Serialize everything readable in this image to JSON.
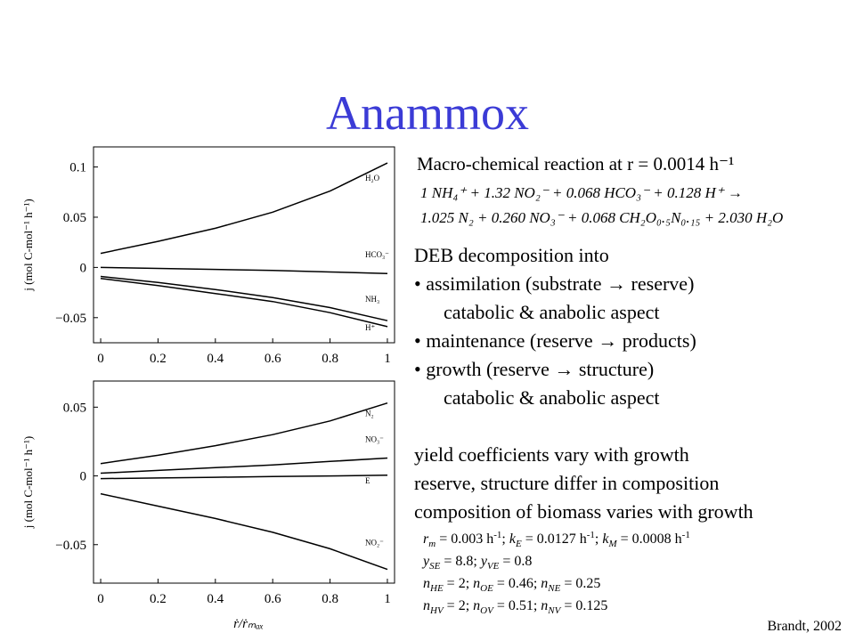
{
  "title": "Anammox",
  "reaction": {
    "heading": "Macro-chemical reaction at r = 0.0014 h⁻¹",
    "equation": [
      "1 NH₄⁺ + 1.32 NO₂⁻ + 0.068 HCO₃⁻ + 0.128 H⁺ →",
      "1.025 N₂ + 0.260 NO₃⁻ + 0.068 CH₂O₀.₅N₀.₁₅ + 2.030 H₂O"
    ]
  },
  "decomposition": {
    "heading": "DEB decomposition into",
    "items": [
      {
        "text": "• assimilation (substrate → reserve)",
        "detail": "catabolic & anabolic aspect"
      },
      {
        "text": "• maintenance (reserve → products)"
      },
      {
        "text": "• growth (reserve → structure)",
        "detail": "catabolic & anabolic aspect"
      }
    ]
  },
  "notes": [
    "yield coefficients vary with growth",
    "reserve, structure differ in composition",
    "composition of biomass varies with growth"
  ],
  "parameters": [
    [
      {
        "i": "r"
      },
      {
        "sub": "m"
      },
      " = 0.003 h",
      {
        "sup": "-1"
      },
      "; ",
      {
        "i": "k"
      },
      {
        "sub": "E"
      },
      " = 0.0127 h",
      {
        "sup": "-1"
      },
      "; ",
      {
        "i": "k"
      },
      {
        "sub": "M"
      },
      " = 0.0008 h",
      {
        "sup": "-1"
      }
    ],
    [
      {
        "i": "y"
      },
      {
        "sub": "SE"
      },
      " = 8.8; ",
      {
        "i": "y"
      },
      {
        "sub": "VE"
      },
      " = 0.8"
    ],
    [
      {
        "i": "n"
      },
      {
        "sub": "HE"
      },
      " = 2; ",
      {
        "i": "n"
      },
      {
        "sub": "OE"
      },
      " = 0.46; ",
      {
        "i": "n"
      },
      {
        "sub": "NE"
      },
      " = 0.25"
    ],
    [
      {
        "i": "n"
      },
      {
        "sub": "HV"
      },
      " = 2; ",
      {
        "i": "n"
      },
      {
        "sub": "OV"
      },
      " = 0.51; ",
      {
        "i": "n"
      },
      {
        "sub": "NV"
      },
      " = 0.125"
    ]
  ],
  "source": "Brandt, 2002",
  "chart_data": [
    {
      "type": "line",
      "ylabel": "j (mol C-mol⁻¹ h⁻¹)",
      "x": [
        0,
        0.2,
        0.4,
        0.6,
        0.8,
        1
      ],
      "xlim": [
        -0.025,
        1.025
      ],
      "ylim": [
        -0.075,
        0.12
      ],
      "xticks": [
        0,
        0.2,
        0.4,
        0.6,
        0.8,
        1
      ],
      "yticks": [
        {
          "value": -0.05,
          "label": "−0.05"
        },
        0,
        0.05,
        0.1
      ],
      "series": [
        {
          "name": "H₂O",
          "color": "#000000",
          "values": [
            0.014,
            0.026,
            0.039,
            0.055,
            0.076,
            0.104
          ]
        },
        {
          "name": "HCO₃⁻",
          "color": "#000000",
          "values": [
            0,
            -0.001,
            -0.002,
            -0.003,
            -0.0045,
            -0.006
          ]
        },
        {
          "name": "NH₃",
          "color": "#000000",
          "values": [
            -0.009,
            -0.015,
            -0.022,
            -0.03,
            -0.04,
            -0.053
          ]
        },
        {
          "name": "H⁺",
          "color": "#000000",
          "values": [
            -0.011,
            -0.018,
            -0.026,
            -0.034,
            -0.045,
            -0.059
          ]
        }
      ]
    },
    {
      "type": "line",
      "ylabel": "j (mol C-mol⁻¹ h⁻¹)",
      "xlabel": "ṙ/ṙₘₐₓ",
      "x": [
        0,
        0.2,
        0.4,
        0.6,
        0.8,
        1
      ],
      "xlim": [
        -0.025,
        1.025
      ],
      "ylim": [
        -0.078,
        0.069
      ],
      "xticks": [
        0,
        0.2,
        0.4,
        0.6,
        0.8,
        1
      ],
      "yticks": [
        {
          "value": -0.05,
          "label": "−0.05"
        },
        0,
        0.05
      ],
      "series": [
        {
          "name": "N₂",
          "color": "#000000",
          "values": [
            0.009,
            0.015,
            0.022,
            0.03,
            0.04,
            0.053
          ]
        },
        {
          "name": "NO₃⁻",
          "color": "#000000",
          "values": [
            0.002,
            0.004,
            0.006,
            0.008,
            0.0105,
            0.013
          ]
        },
        {
          "name": "E",
          "color": "#000000",
          "values": [
            -0.002,
            -0.0015,
            -0.001,
            -0.0005,
            0,
            0.0005
          ]
        },
        {
          "name": "NO₂⁻",
          "color": "#000000",
          "values": [
            -0.013,
            -0.022,
            -0.031,
            -0.041,
            -0.053,
            -0.068
          ]
        }
      ]
    }
  ]
}
